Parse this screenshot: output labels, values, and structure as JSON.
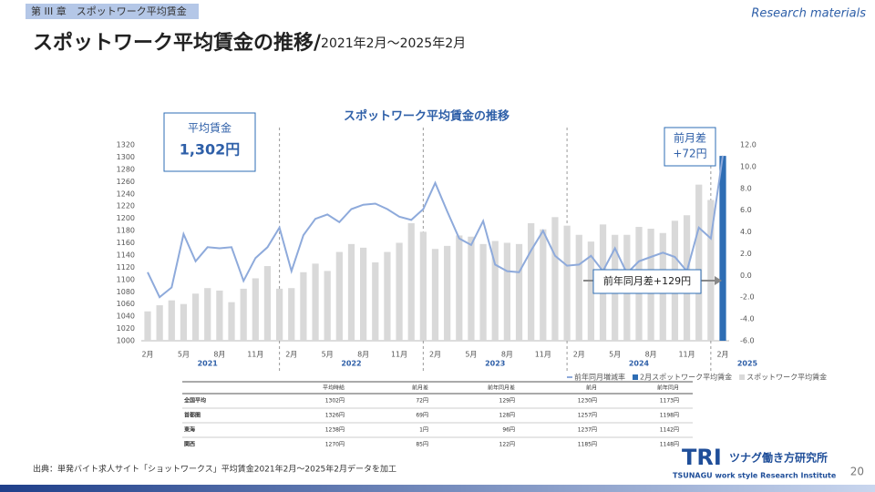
{
  "header": {
    "chapter": "第 III 章　スポットワーク平均賃金",
    "tag": "Research materials",
    "title": "スポットワーク平均賃金の推移/",
    "subtitle": "2021年2月～2025年2月"
  },
  "chart_data": {
    "type": "bar",
    "title": "スポットワーク平均賃金の推移",
    "categories": [
      "2月",
      null,
      null,
      "5月",
      null,
      null,
      "8月",
      null,
      null,
      "11月",
      null,
      null,
      "2月",
      null,
      null,
      "5月",
      null,
      null,
      "8月",
      null,
      null,
      "11月",
      null,
      null,
      "2月",
      null,
      null,
      "5月",
      null,
      null,
      "8月",
      null,
      null,
      "11月",
      null,
      null,
      "2月",
      null,
      null,
      "5月",
      null,
      null,
      "8月",
      null,
      null,
      "11月",
      null,
      null,
      "2月"
    ],
    "year_labels": [
      "2021",
      "2022",
      "2023",
      "2024",
      "2025"
    ],
    "series": [
      {
        "name": "前年同月増減率",
        "type": "line",
        "axis": "y2",
        "color": "#8eaadb",
        "values": [
          0.3,
          -2.0,
          -1.1,
          3.8,
          1.3,
          2.6,
          2.5,
          2.6,
          -0.5,
          1.6,
          2.6,
          4.4,
          0.4,
          3.7,
          5.2,
          5.6,
          4.9,
          6.1,
          6.5,
          6.6,
          6.1,
          5.4,
          5.1,
          6.1,
          8.5,
          5.9,
          3.4,
          2.8,
          5.0,
          1.0,
          0.4,
          0.3,
          2.3,
          4.1,
          1.8,
          0.9,
          1.0,
          1.8,
          0.4,
          2.5,
          0.2,
          1.3,
          1.7,
          2.1,
          1.7,
          0.4,
          4.4,
          3.4,
          11.0
        ]
      },
      {
        "name": "2月スポットワーク平均賃金",
        "type": "bar",
        "color": "#2e6db4",
        "values": [
          null,
          null,
          null,
          null,
          null,
          null,
          null,
          null,
          null,
          null,
          null,
          null,
          null,
          null,
          null,
          null,
          null,
          null,
          null,
          null,
          null,
          null,
          null,
          null,
          null,
          null,
          null,
          null,
          null,
          null,
          null,
          null,
          null,
          null,
          null,
          null,
          null,
          null,
          null,
          null,
          null,
          null,
          null,
          null,
          null,
          null,
          null,
          null,
          1302
        ]
      },
      {
        "name": "スポットワーク平均賃金",
        "type": "bar",
        "color": "#d9d9d9",
        "values": [
          1048,
          1058,
          1066,
          1060,
          1077,
          1086,
          1082,
          1063,
          1085,
          1102,
          1122,
          1085,
          1086,
          1112,
          1126,
          1114,
          1145,
          1158,
          1152,
          1128,
          1145,
          1160,
          1192,
          1178,
          1150,
          1155,
          1172,
          1170,
          1158,
          1163,
          1160,
          1158,
          1192,
          1182,
          1202,
          1188,
          1173,
          1162,
          1190,
          1173,
          1173,
          1186,
          1183,
          1176,
          1196,
          1205,
          1255,
          1230,
          null
        ]
      }
    ],
    "ylim": [
      1000,
      1320
    ],
    "yticks": [
      1000,
      1020,
      1040,
      1060,
      1080,
      1100,
      1120,
      1140,
      1160,
      1180,
      1200,
      1220,
      1240,
      1260,
      1280,
      1300,
      1320
    ],
    "y2lim": [
      -6,
      12
    ],
    "y2ticks": [
      {
        "value": -6,
        "label": "-6.0"
      },
      {
        "value": -4,
        "label": "-4.0"
      },
      {
        "value": -2,
        "label": "-2.0"
      },
      {
        "value": 0,
        "label": "0.0"
      },
      {
        "value": 2,
        "label": "2.0"
      },
      {
        "value": 4,
        "label": "4.0"
      },
      {
        "value": 6,
        "label": "6.0"
      },
      {
        "value": 8,
        "label": "8.0"
      },
      {
        "value": 10,
        "label": "10.0"
      },
      {
        "value": 12,
        "label": "12.0"
      }
    ],
    "legend": "bottom-right",
    "annotations": [
      {
        "title": "平均賃金",
        "text": "1,302円"
      },
      {
        "title": "前月差",
        "text": "+72円"
      },
      {
        "text": "前年同月差+129円"
      }
    ]
  },
  "table": {
    "columns": [
      "平均時給",
      "前月差",
      "前年同月差",
      "前月",
      "前年同月"
    ],
    "rows": [
      [
        "全国平均",
        "1302円",
        "72円",
        "129円",
        "1230円",
        "1173円"
      ],
      [
        "首都圏",
        "1326円",
        "69円",
        "128円",
        "1257円",
        "1198円"
      ],
      [
        "東海",
        "1238円",
        "1円",
        "96円",
        "1237円",
        "1142円"
      ],
      [
        "関西",
        "1270円",
        "85円",
        "122円",
        "1185円",
        "1148円"
      ]
    ]
  },
  "footer": {
    "source": "出典：単発バイト求人サイト「ショットワークス」平均賃金2021年2月～2025年2月データを加工",
    "logo": "TRI",
    "logo_name": "ツナグ働き方研究所",
    "logo_sub": "TSUNAGU work style Research Institute",
    "page": "20"
  }
}
